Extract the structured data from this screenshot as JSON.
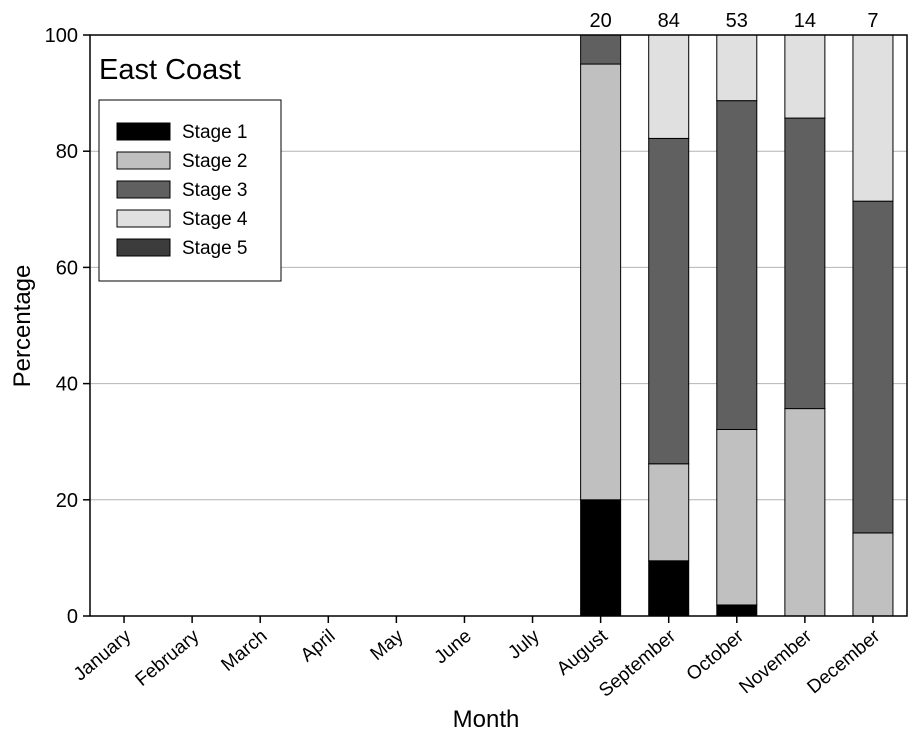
{
  "chart_data": {
    "type": "bar",
    "stacked": true,
    "title": "East Coast",
    "xlabel": "Month",
    "ylabel": "Percentage",
    "ylim": [
      0,
      100
    ],
    "yticks": [
      0,
      20,
      40,
      60,
      80,
      100
    ],
    "grid": "horizontal",
    "legend_position": "top-left",
    "categories": [
      "January",
      "February",
      "March",
      "April",
      "May",
      "June",
      "July",
      "August",
      "September",
      "October",
      "November",
      "December"
    ],
    "sample_sizes": [
      "",
      "",
      "",
      "",
      "",
      "",
      "",
      "20",
      "84",
      "53",
      "14",
      "7"
    ],
    "series": [
      {
        "name": "Stage 1",
        "color": "#000000",
        "values": [
          0,
          0,
          0,
          0,
          0,
          0,
          0,
          20,
          9.5,
          1.9,
          0,
          0
        ]
      },
      {
        "name": "Stage 2",
        "color": "#c0c0c0",
        "values": [
          0,
          0,
          0,
          0,
          0,
          0,
          0,
          75,
          16.7,
          30.2,
          35.7,
          14.3
        ]
      },
      {
        "name": "Stage 3",
        "color": "#606060",
        "values": [
          0,
          0,
          0,
          0,
          0,
          0,
          0,
          5,
          56.0,
          56.6,
          50.0,
          57.1
        ]
      },
      {
        "name": "Stage 4",
        "color": "#e0e0e0",
        "values": [
          0,
          0,
          0,
          0,
          0,
          0,
          0,
          0,
          17.8,
          11.3,
          14.3,
          28.6
        ]
      },
      {
        "name": "Stage 5",
        "color": "#3c3c3c",
        "values": [
          0,
          0,
          0,
          0,
          0,
          0,
          0,
          0,
          0,
          0,
          0,
          0
        ]
      }
    ]
  }
}
